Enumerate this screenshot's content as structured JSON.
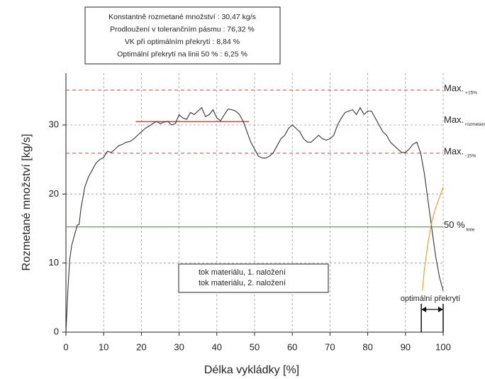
{
  "chart_data": {
    "type": "line",
    "info": [
      "Konstantně rozmetané množství : 30,47 kg/s",
      "Prodloužení v tolerančním pásmu : 76,32 %",
      "VK při optimálním překrytí : 8,84 %",
      "Optimální překrytí na linii 50 % : 6,25 %"
    ],
    "x_label": "Délka vykládky [%]",
    "y_label": "Rozmetané množství [kg/s]",
    "xlim": [
      0,
      100
    ],
    "xticks": [
      0,
      10,
      20,
      30,
      40,
      50,
      60,
      70,
      80,
      90,
      100
    ],
    "ylim": [
      0,
      37.5
    ],
    "yticks": [
      0,
      10,
      20,
      30
    ],
    "grid": true,
    "legend": "lower-center",
    "series": [
      {
        "name": "tok materiálu, 1. naložení",
        "color": "#333333",
        "x": [
          0,
          0.5,
          1,
          1.5,
          2,
          3,
          3.5,
          4,
          5,
          6,
          7,
          8,
          9,
          10,
          11,
          12,
          13,
          14,
          15,
          16,
          17,
          18,
          19,
          20,
          21,
          22,
          23,
          24,
          25,
          26,
          27,
          28,
          29,
          30,
          31,
          32,
          33,
          34,
          35,
          36,
          37,
          38,
          39,
          40,
          41,
          42,
          43,
          44,
          45,
          46,
          47,
          48,
          49,
          50,
          51,
          52,
          53,
          54,
          55,
          56,
          57,
          58,
          59,
          60,
          61,
          62,
          63,
          64,
          65,
          66,
          67,
          68,
          69,
          70,
          71,
          72,
          73,
          74,
          75,
          76,
          77,
          78,
          79,
          80,
          81,
          82,
          83,
          84,
          85,
          86,
          87,
          88,
          89,
          90,
          91,
          92,
          93,
          94,
          95,
          96,
          97,
          98,
          99,
          100
        ],
        "values": [
          0,
          6,
          10.5,
          12.5,
          13.5,
          15.5,
          15.6,
          18,
          21,
          22.5,
          23.5,
          24.5,
          25,
          25.3,
          26.2,
          26,
          26.5,
          27,
          27.2,
          27.5,
          27.6,
          28,
          28.5,
          29,
          29.5,
          29.8,
          30.2,
          30.5,
          30.2,
          30.4,
          30.5,
          30,
          30.2,
          31.5,
          31,
          30.8,
          31.8,
          31.5,
          32,
          32.5,
          31.2,
          31.5,
          32.2,
          31,
          30.6,
          31.5,
          32.3,
          32.2,
          32,
          31.5,
          30.5,
          29,
          27.5,
          26.5,
          25.5,
          25.2,
          25.2,
          25.5,
          26,
          27,
          28,
          28.5,
          29.5,
          30,
          29.5,
          29,
          28,
          27.5,
          27.5,
          28,
          28.5,
          28,
          27.8,
          28,
          28.5,
          30,
          31,
          31.8,
          32,
          32.2,
          31.5,
          32.5,
          31.5,
          32,
          32,
          31,
          30,
          29,
          28.5,
          27.5,
          27,
          26.5,
          26,
          26,
          26.5,
          27.2,
          27.5,
          26,
          23,
          19,
          15,
          11,
          8,
          6
        ]
      },
      {
        "name": "tok materiálu, 2. naložení",
        "color": "#f39a1e",
        "x": [
          94.5,
          95,
          96,
          97,
          98,
          99,
          100
        ],
        "values": [
          6,
          9,
          13,
          16,
          18,
          19.5,
          21
        ]
      }
    ],
    "reference_lines": [
      {
        "label": "Max.",
        "sublabel": "+15%",
        "value": 35.04,
        "color": "#e03c31",
        "dashed": true
      },
      {
        "label": "Max.",
        "sublabel": "rozmetané množství",
        "value": 30.47,
        "color": "#e03c31",
        "dashed": false,
        "xrange": [
          18.5,
          48.5
        ]
      },
      {
        "label": "Max.",
        "sublabel": "-15%",
        "value": 25.9,
        "color": "#e03c31",
        "dashed": true
      },
      {
        "label": "50 %",
        "sublabel": "linie",
        "value": 15.235,
        "color": "#3a8a2e",
        "dashed": false
      }
    ],
    "overlap": {
      "label": "optimální překrytí",
      "range": [
        94.2,
        100
      ]
    }
  }
}
